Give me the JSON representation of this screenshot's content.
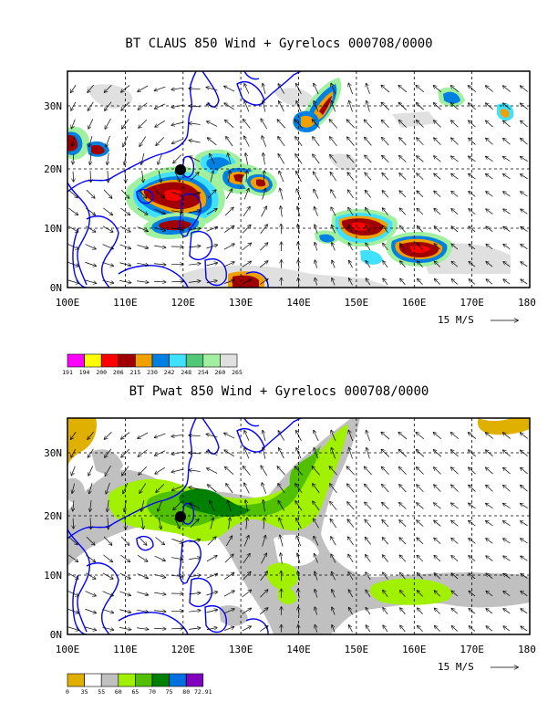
{
  "panels": [
    {
      "title": "BT CLAUS 850 Wind + Gyrelocs 000708/0000",
      "x_ticks": [
        "100E",
        "110E",
        "120E",
        "130E",
        "140E",
        "150E",
        "160E",
        "170E",
        "180"
      ],
      "y_ticks": [
        "0N",
        "10N",
        "20N",
        "30N"
      ],
      "vector_ref": "15 M/S",
      "legend": {
        "labels": [
          "191",
          "194",
          "200",
          "206",
          "215",
          "230",
          "242",
          "248",
          "254",
          "260",
          "265"
        ],
        "colors": [
          "#ff00ff",
          "#ffff00",
          "#ff0000",
          "#a00000",
          "#f0a000",
          "#0080e0",
          "#40e0ff",
          "#50c878",
          "#a0f0a0",
          "#e0e0e0"
        ]
      }
    },
    {
      "title": "BT Pwat 850 Wind + Gyrelocs 000708/0000",
      "x_ticks": [
        "100E",
        "110E",
        "120E",
        "130E",
        "140E",
        "150E",
        "160E",
        "170E",
        "180"
      ],
      "y_ticks": [
        "0N",
        "10N",
        "20N",
        "30N"
      ],
      "vector_ref": "15 M/S",
      "legend": {
        "labels": [
          "0",
          "35",
          "55",
          "60",
          "65",
          "70",
          "75",
          "80",
          "72.91"
        ],
        "colors": [
          "#e0b000",
          "#ffffff",
          "#c0c0c0",
          "#a0f000",
          "#50c000",
          "#008000",
          "#0070e0",
          "#8000c0"
        ]
      }
    }
  ],
  "colors": {
    "coast": "#0000ff",
    "grid": "#000000",
    "gyre_marker": "#000000"
  }
}
